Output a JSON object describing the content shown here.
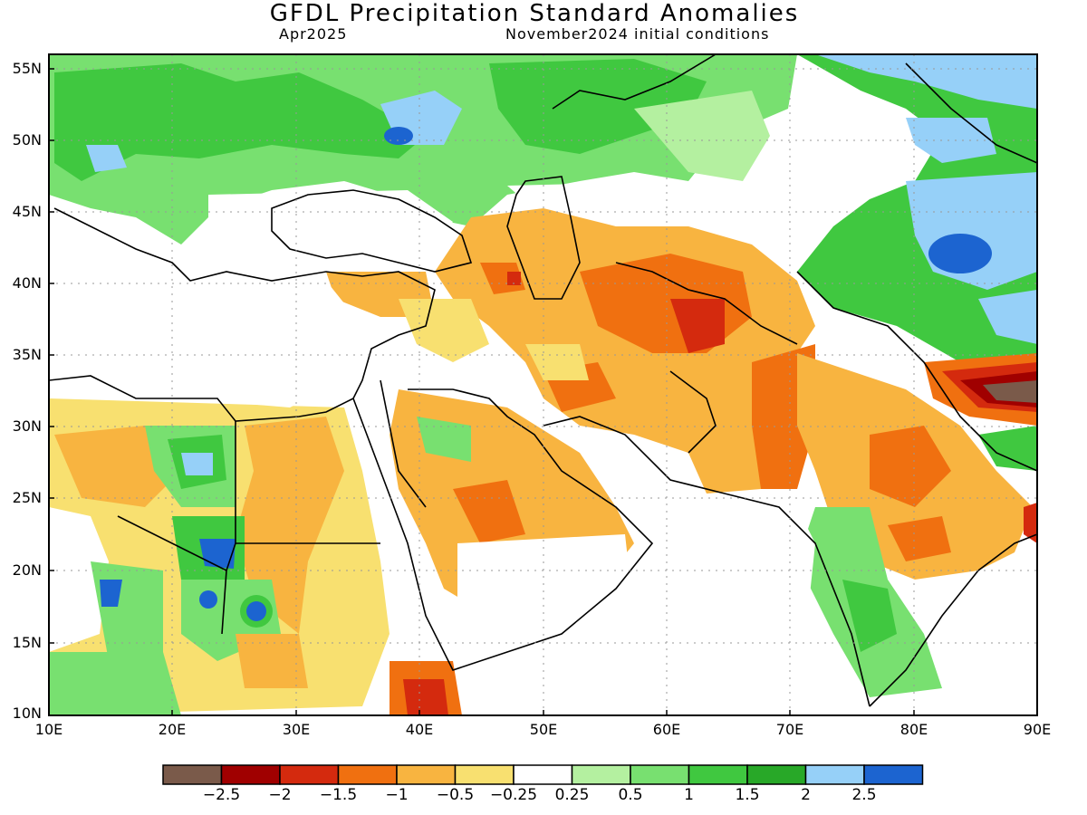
{
  "title": "GFDL Precipitation Standard Anomalies",
  "subtitle_left": "Apr2025",
  "subtitle_right": "November2024 initial conditions",
  "lat_ticks": [
    "55N",
    "50N",
    "45N",
    "40N",
    "35N",
    "30N",
    "25N",
    "20N",
    "15N",
    "10N"
  ],
  "lon_ticks": [
    "10E",
    "20E",
    "30E",
    "40E",
    "50E",
    "60E",
    "70E",
    "80E",
    "90E"
  ],
  "colorbar": {
    "colors": [
      "#7a5a4a",
      "#a00000",
      "#d42a0e",
      "#f07010",
      "#f8b440",
      "#f8e070",
      "#ffffff",
      "#b4f0a0",
      "#78e070",
      "#40c840",
      "#28a828",
      "#96d0f8",
      "#1c64d0"
    ],
    "labels": [
      "−2.5",
      "−2",
      "−1.5",
      "−1",
      "−0.5",
      "−0.25",
      "0.25",
      "0.5",
      "1",
      "1.5",
      "2",
      "2.5"
    ]
  },
  "legend_categories": [
    "< −2.5",
    "−2.5 to −2",
    "−2 to −1.5",
    "−1.5 to −1",
    "−1 to −0.5",
    "−0.5 to −0.25",
    "−0.25 to 0.25",
    "0.25 to 0.5",
    "0.5 to 1",
    "1 to 1.5",
    "1.5 to 2",
    "2 to 2.5",
    "> 2.5"
  ]
}
